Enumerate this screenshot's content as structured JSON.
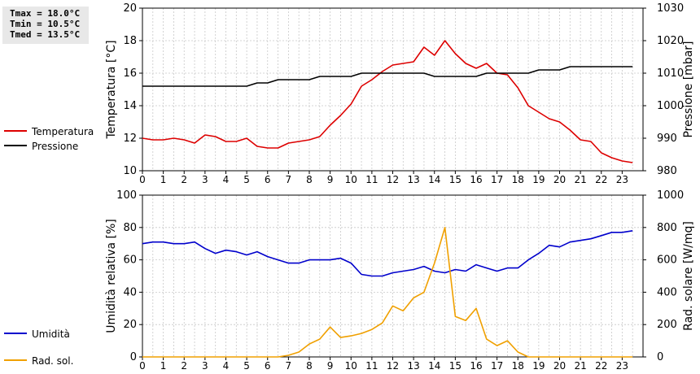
{
  "stats": {
    "tmax": "Tmax = 18.0°C",
    "tmin": "Tmin = 10.5°C",
    "tmed": "Tmed = 13.5°C"
  },
  "chart_data": [
    {
      "type": "line",
      "ylabel": "Temperatura [°C]",
      "y2label": "Pressione [mbar]",
      "ylim": [
        10,
        20
      ],
      "y2lim": [
        980,
        1030
      ],
      "yticks": [
        10,
        12,
        14,
        16,
        18,
        20
      ],
      "y2ticks": [
        980,
        990,
        1000,
        1010,
        1020,
        1030
      ],
      "xlim": [
        0,
        24
      ],
      "xticks": [
        0,
        1,
        2,
        3,
        4,
        5,
        6,
        7,
        8,
        9,
        10,
        11,
        12,
        13,
        14,
        15,
        16,
        17,
        18,
        19,
        20,
        21,
        22,
        23
      ],
      "grid": true,
      "legend_position": "left",
      "x": [
        0,
        0.5,
        1,
        1.5,
        2,
        2.5,
        3,
        3.5,
        4,
        4.5,
        5,
        5.5,
        6,
        6.5,
        7,
        7.5,
        8,
        8.5,
        9,
        9.5,
        10,
        10.5,
        11,
        11.5,
        12,
        12.5,
        13,
        13.5,
        14,
        14.5,
        15,
        15.5,
        16,
        16.5,
        17,
        17.5,
        18,
        18.5,
        19,
        19.5,
        20,
        20.5,
        21,
        21.5,
        22,
        22.5,
        23,
        23.5
      ],
      "series": [
        {
          "name": "Temperatura",
          "axis": "left",
          "color": "#dd0000",
          "values": [
            12.0,
            11.9,
            11.9,
            12.0,
            11.9,
            11.7,
            12.2,
            12.1,
            11.8,
            11.8,
            12.0,
            11.5,
            11.4,
            11.4,
            11.7,
            11.8,
            11.9,
            12.1,
            12.8,
            13.4,
            14.1,
            15.2,
            15.6,
            16.1,
            16.5,
            16.6,
            16.7,
            17.6,
            17.1,
            18.0,
            17.2,
            16.6,
            16.3,
            16.6,
            16.0,
            15.9,
            15.1,
            14.0,
            13.6,
            13.2,
            13.0,
            12.5,
            11.9,
            11.8,
            11.1,
            10.8,
            10.6,
            10.5
          ]
        },
        {
          "name": "Pressione",
          "axis": "right",
          "color": "#000000",
          "values": [
            1006,
            1006,
            1006,
            1006,
            1006,
            1006,
            1006,
            1006,
            1006,
            1006,
            1006,
            1007,
            1007,
            1008,
            1008,
            1008,
            1008,
            1009,
            1009,
            1009,
            1009,
            1010,
            1010,
            1010,
            1010,
            1010,
            1010,
            1010,
            1009,
            1009,
            1009,
            1009,
            1009,
            1010,
            1010,
            1010,
            1010,
            1010,
            1011,
            1011,
            1011,
            1012,
            1012,
            1012,
            1012,
            1012,
            1012,
            1012
          ]
        }
      ]
    },
    {
      "type": "line",
      "ylabel": "Umidità relativa [%]",
      "y2label": "Rad. solare [W/mq]",
      "ylim": [
        0,
        100
      ],
      "y2lim": [
        0,
        1000
      ],
      "yticks": [
        0,
        20,
        40,
        60,
        80,
        100
      ],
      "y2ticks": [
        0,
        200,
        400,
        600,
        800,
        1000
      ],
      "xlim": [
        0,
        24
      ],
      "xticks": [
        0,
        1,
        2,
        3,
        4,
        5,
        6,
        7,
        8,
        9,
        10,
        11,
        12,
        13,
        14,
        15,
        16,
        17,
        18,
        19,
        20,
        21,
        22,
        23
      ],
      "grid": true,
      "legend_position": "left",
      "x": [
        0,
        0.5,
        1,
        1.5,
        2,
        2.5,
        3,
        3.5,
        4,
        4.5,
        5,
        5.5,
        6,
        6.5,
        7,
        7.5,
        8,
        8.5,
        9,
        9.5,
        10,
        10.5,
        11,
        11.5,
        12,
        12.5,
        13,
        13.5,
        14,
        14.5,
        15,
        15.5,
        16,
        16.5,
        17,
        17.5,
        18,
        18.5,
        19,
        19.5,
        20,
        20.5,
        21,
        21.5,
        22,
        22.5,
        23,
        23.5
      ],
      "series": [
        {
          "name": "Umidità",
          "axis": "left",
          "color": "#0000cc",
          "values": [
            70,
            71,
            71,
            70,
            70,
            71,
            67,
            64,
            66,
            65,
            63,
            65,
            62,
            60,
            58,
            58,
            60,
            60,
            60,
            61,
            58,
            51,
            50,
            50,
            52,
            53,
            54,
            56,
            53,
            52,
            54,
            53,
            57,
            55,
            53,
            55,
            55,
            60,
            64,
            69,
            68,
            71,
            72,
            73,
            75,
            77,
            77,
            78
          ]
        },
        {
          "name": "Rad. sol.",
          "axis": "right",
          "color": "#f0a000",
          "values": [
            0,
            0,
            0,
            0,
            0,
            0,
            0,
            0,
            0,
            0,
            0,
            0,
            0,
            0,
            10,
            30,
            80,
            110,
            185,
            120,
            130,
            145,
            170,
            210,
            315,
            285,
            365,
            400,
            580,
            800,
            250,
            225,
            300,
            110,
            70,
            100,
            30,
            0,
            0,
            0,
            0,
            0,
            0,
            0,
            0,
            0,
            0,
            0
          ]
        }
      ]
    }
  ]
}
